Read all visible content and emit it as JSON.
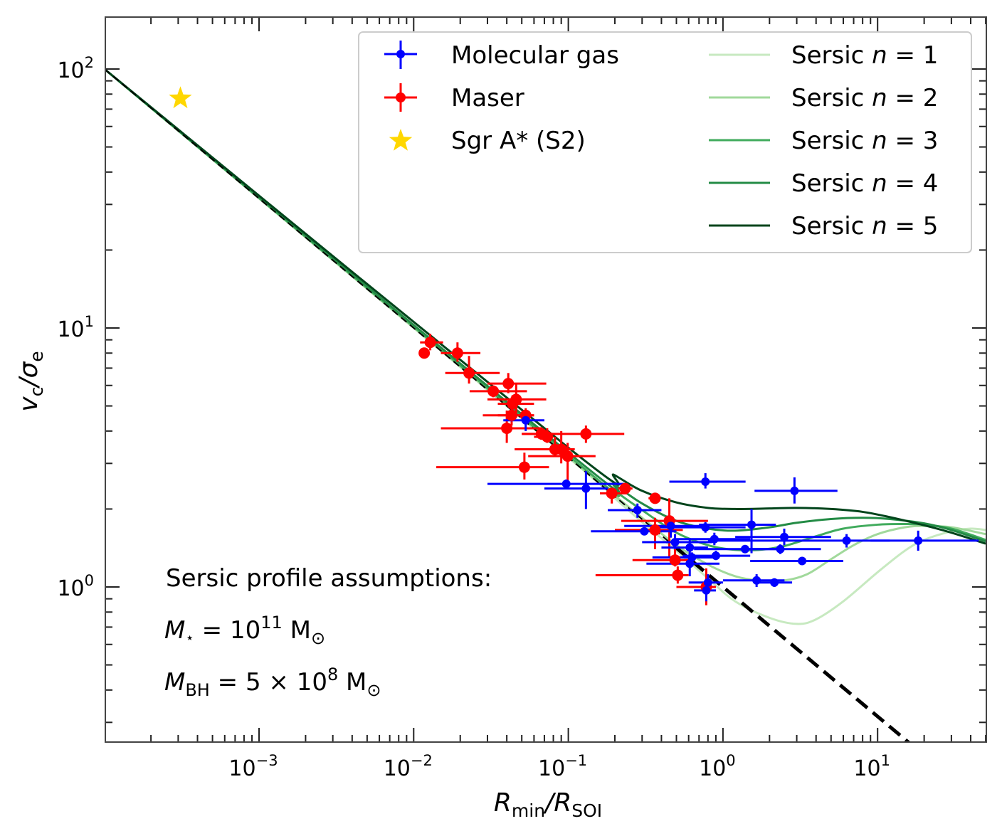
{
  "chart_data": {
    "type": "scatter",
    "title": "",
    "xlabel": "R_min/R_SOI",
    "xlabel_parts": {
      "main1": "R",
      "sub1": "min",
      "slash": "/",
      "main2": "R",
      "sub2": "SOI"
    },
    "ylabel": "v_c/σ_e",
    "ylabel_parts": {
      "main1": "v",
      "sub1": "c",
      "slash": "/",
      "main2": "σ",
      "sub2": "e"
    },
    "xscale": "log",
    "yscale": "log",
    "xlim": [
      0.0001,
      50
    ],
    "ylim": [
      0.25,
      160
    ],
    "grid": false,
    "x_ticks": [
      {
        "value": 0.001,
        "base": "10",
        "exp": "−3"
      },
      {
        "value": 0.01,
        "base": "10",
        "exp": "−2"
      },
      {
        "value": 0.1,
        "base": "10",
        "exp": "−1"
      },
      {
        "value": 1,
        "base": "10",
        "exp": "0"
      },
      {
        "value": 10,
        "base": "10",
        "exp": "1"
      }
    ],
    "y_ticks": [
      {
        "value": 1,
        "base": "10",
        "exp": "0"
      },
      {
        "value": 10,
        "base": "10",
        "exp": "1"
      },
      {
        "value": 100,
        "base": "10",
        "exp": "2"
      }
    ],
    "legend": {
      "placement": "top-right",
      "entries": [
        {
          "label": "Molecular gas",
          "kind": "errorbar",
          "color": "#0000ff"
        },
        {
          "label": "Maser",
          "kind": "errorbar",
          "color": "#ff0000"
        },
        {
          "label": "Sgr A* (S2)",
          "kind": "star",
          "color": "#ffd700"
        },
        {
          "label_prefix": "Sersic ",
          "label_var": "n",
          "label_suffix": " = 1",
          "kind": "line",
          "color": "#c7e9c0"
        },
        {
          "label_prefix": "Sersic ",
          "label_var": "n",
          "label_suffix": " = 2",
          "kind": "line",
          "color": "#a1d99b"
        },
        {
          "label_prefix": "Sersic ",
          "label_var": "n",
          "label_suffix": " = 3",
          "kind": "line",
          "color": "#41ab5d"
        },
        {
          "label_prefix": "Sersic ",
          "label_var": "n",
          "label_suffix": " = 4",
          "kind": "line",
          "color": "#238b45"
        },
        {
          "label_prefix": "Sersic ",
          "label_var": "n",
          "label_suffix": " = 5",
          "kind": "line",
          "color": "#00441b"
        }
      ]
    },
    "annotations": {
      "heading": "Sersic profile assumptions:",
      "mstar": {
        "sym": "M",
        "sub": "⋆",
        "eq": " = 10",
        "exp": "11",
        "unit": " M",
        "unit_sub": "⊙"
      },
      "mbh": {
        "sym": "M",
        "sub": "BH",
        "eq": " = 5 × 10",
        "exp": "8",
        "unit": " M",
        "unit_sub": "⊙"
      }
    },
    "reference_line": {
      "name": "Keplerian (black hole only)",
      "style": "dashed",
      "color": "#000000",
      "slope": -0.5,
      "x0": 0.0001,
      "y0": 100
    },
    "series": [
      {
        "name": "Maser",
        "type": "errorbar",
        "color": "#ff0000",
        "points": [
          {
            "x": 0.0117,
            "y": 8.0,
            "xlo": 0.0117,
            "xhi": 0.0117,
            "ylo": 8.0,
            "yhi": 8.0
          },
          {
            "x": 0.0128,
            "y": 8.8,
            "xlo": 0.011,
            "xhi": 0.0155,
            "ylo": 8.2,
            "yhi": 9.5
          },
          {
            "x": 0.0192,
            "y": 8.0,
            "xlo": 0.015,
            "xhi": 0.027,
            "ylo": 7.4,
            "yhi": 8.8
          },
          {
            "x": 0.0228,
            "y": 6.7,
            "xlo": 0.016,
            "xhi": 0.036,
            "ylo": 6.1,
            "yhi": 7.8
          },
          {
            "x": 0.0327,
            "y": 5.7,
            "xlo": 0.023,
            "xhi": 0.054,
            "ylo": 5.4,
            "yhi": 6.0
          },
          {
            "x": 0.0409,
            "y": 6.1,
            "xlo": 0.03,
            "xhi": 0.072,
            "ylo": 5.6,
            "yhi": 6.7
          },
          {
            "x": 0.0436,
            "y": 5.1,
            "xlo": 0.035,
            "xhi": 0.06,
            "ylo": 4.6,
            "yhi": 5.5
          },
          {
            "x": 0.046,
            "y": 5.3,
            "xlo": 0.03,
            "xhi": 0.072,
            "ylo": 4.7,
            "yhi": 6.1
          },
          {
            "x": 0.043,
            "y": 4.6,
            "xlo": 0.028,
            "xhi": 0.06,
            "ylo": 4.2,
            "yhi": 5.0
          },
          {
            "x": 0.053,
            "y": 4.6,
            "xlo": 0.035,
            "xhi": 0.06,
            "ylo": 4.3,
            "yhi": 4.9
          },
          {
            "x": 0.04,
            "y": 4.1,
            "xlo": 0.015,
            "xhi": 0.068,
            "ylo": 3.6,
            "yhi": 4.8
          },
          {
            "x": 0.067,
            "y": 3.9,
            "xlo": 0.05,
            "xhi": 0.08,
            "ylo": 3.7,
            "yhi": 4.0
          },
          {
            "x": 0.073,
            "y": 3.8,
            "xlo": 0.06,
            "xhi": 0.08,
            "ylo": 3.6,
            "yhi": 4.1
          },
          {
            "x": 0.082,
            "y": 3.4,
            "xlo": 0.045,
            "xhi": 0.11,
            "ylo": 3.2,
            "yhi": 3.8
          },
          {
            "x": 0.09,
            "y": 3.4,
            "xlo": 0.045,
            "xhi": 0.11,
            "ylo": 3.0,
            "yhi": 4.0
          },
          {
            "x": 0.099,
            "y": 3.2,
            "xlo": 0.055,
            "xhi": 0.15,
            "ylo": 2.5,
            "yhi": 3.6
          },
          {
            "x": 0.052,
            "y": 2.9,
            "xlo": 0.014,
            "xhi": 0.075,
            "ylo": 2.6,
            "yhi": 3.3
          },
          {
            "x": 0.13,
            "y": 3.9,
            "xlo": 0.05,
            "xhi": 0.23,
            "ylo": 3.6,
            "yhi": 4.2
          },
          {
            "x": 0.191,
            "y": 2.3,
            "xlo": 0.16,
            "xhi": 0.24,
            "ylo": 2.1,
            "yhi": 2.4
          },
          {
            "x": 0.233,
            "y": 2.4,
            "xlo": 0.21,
            "xhi": 0.26,
            "ylo": 2.3,
            "yhi": 2.5
          },
          {
            "x": 0.364,
            "y": 2.2,
            "xlo": 0.33,
            "xhi": 0.39,
            "ylo": 2.1,
            "yhi": 2.3
          },
          {
            "x": 0.45,
            "y": 1.8,
            "xlo": 0.22,
            "xhi": 0.8,
            "ylo": 1.3,
            "yhi": 2.2
          },
          {
            "x": 0.364,
            "y": 1.66,
            "xlo": 0.2,
            "xhi": 0.55,
            "ylo": 1.4,
            "yhi": 1.85
          },
          {
            "x": 0.49,
            "y": 1.27,
            "xlo": 0.26,
            "xhi": 0.65,
            "ylo": 1.2,
            "yhi": 1.4
          },
          {
            "x": 0.51,
            "y": 1.11,
            "xlo": 0.15,
            "xhi": 0.6,
            "ylo": 1.03,
            "yhi": 1.2
          },
          {
            "x": 0.78,
            "y": 1.0,
            "xlo": 0.5,
            "xhi": 0.9,
            "ylo": 0.85,
            "yhi": 1.18
          }
        ]
      },
      {
        "name": "Molecular gas",
        "type": "errorbar",
        "color": "#0000ff",
        "points": [
          {
            "x": 0.053,
            "y": 4.4,
            "xlo": 0.038,
            "xhi": 0.07,
            "ylo": 4.0,
            "yhi": 4.8
          },
          {
            "x": 0.097,
            "y": 2.5,
            "xlo": 0.03,
            "xhi": 0.23,
            "ylo": 2.4,
            "yhi": 2.6
          },
          {
            "x": 0.13,
            "y": 2.4,
            "xlo": 0.07,
            "xhi": 0.18,
            "ylo": 2.0,
            "yhi": 2.8
          },
          {
            "x": 0.28,
            "y": 1.98,
            "xlo": 0.18,
            "xhi": 0.4,
            "ylo": 1.85,
            "yhi": 2.1
          },
          {
            "x": 0.31,
            "y": 1.64,
            "xlo": 0.14,
            "xhi": 0.5,
            "ylo": 1.6,
            "yhi": 1.68
          },
          {
            "x": 0.46,
            "y": 1.72,
            "xlo": 0.23,
            "xhi": 0.8,
            "ylo": 1.55,
            "yhi": 1.85
          },
          {
            "x": 0.49,
            "y": 1.49,
            "xlo": 0.3,
            "xhi": 0.85,
            "ylo": 1.4,
            "yhi": 1.6
          },
          {
            "x": 0.61,
            "y": 1.42,
            "xlo": 0.4,
            "xhi": 0.8,
            "ylo": 1.33,
            "yhi": 1.52
          },
          {
            "x": 0.63,
            "y": 1.3,
            "xlo": 0.35,
            "xhi": 0.9,
            "ylo": 1.23,
            "yhi": 1.36
          },
          {
            "x": 0.61,
            "y": 1.23,
            "xlo": 0.32,
            "xhi": 0.95,
            "ylo": 1.1,
            "yhi": 1.35
          },
          {
            "x": 0.77,
            "y": 2.55,
            "xlo": 0.45,
            "xhi": 1.4,
            "ylo": 2.4,
            "yhi": 2.75
          },
          {
            "x": 0.77,
            "y": 1.7,
            "xlo": 0.35,
            "xhi": 1.4,
            "ylo": 1.62,
            "yhi": 1.78
          },
          {
            "x": 0.88,
            "y": 1.53,
            "xlo": 0.5,
            "xhi": 1.5,
            "ylo": 1.45,
            "yhi": 1.62
          },
          {
            "x": 0.9,
            "y": 1.32,
            "xlo": 0.55,
            "xhi": 1.5,
            "ylo": 1.27,
            "yhi": 1.38
          },
          {
            "x": 0.8,
            "y": 1.04,
            "xlo": 0.6,
            "xhi": 1.0,
            "ylo": 0.96,
            "yhi": 1.12
          },
          {
            "x": 0.78,
            "y": 0.97,
            "xlo": 0.65,
            "xhi": 0.9,
            "ylo": 0.88,
            "yhi": 1.07
          },
          {
            "x": 1.39,
            "y": 1.4,
            "xlo": 0.65,
            "xhi": 2.5,
            "ylo": 1.35,
            "yhi": 1.45
          },
          {
            "x": 1.53,
            "y": 1.74,
            "xlo": 0.7,
            "xhi": 2.2,
            "ylo": 1.35,
            "yhi": 2.0
          },
          {
            "x": 1.65,
            "y": 1.06,
            "xlo": 1.0,
            "xhi": 2.5,
            "ylo": 1.0,
            "yhi": 1.12
          },
          {
            "x": 2.15,
            "y": 1.04,
            "xlo": 1.7,
            "xhi": 2.8,
            "ylo": 1.0,
            "yhi": 1.08
          },
          {
            "x": 2.35,
            "y": 1.4,
            "xlo": 1.3,
            "xhi": 4.3,
            "ylo": 1.34,
            "yhi": 1.46
          },
          {
            "x": 2.49,
            "y": 1.56,
            "xlo": 1.2,
            "xhi": 5.0,
            "ylo": 1.45,
            "yhi": 1.68
          },
          {
            "x": 3.25,
            "y": 1.26,
            "xlo": 1.5,
            "xhi": 6.0,
            "ylo": 1.22,
            "yhi": 1.3
          },
          {
            "x": 2.9,
            "y": 2.35,
            "xlo": 1.6,
            "xhi": 5.5,
            "ylo": 2.1,
            "yhi": 2.65
          },
          {
            "x": 6.3,
            "y": 1.51,
            "xlo": 0.8,
            "xhi": 12.0,
            "ylo": 1.42,
            "yhi": 1.6
          },
          {
            "x": 18.3,
            "y": 1.51,
            "xlo": 9.0,
            "xhi": 45.0,
            "ylo": 1.38,
            "yhi": 1.65
          }
        ]
      },
      {
        "name": "Sgr A* (S2)",
        "type": "star",
        "color": "#ffd700",
        "points": [
          {
            "x": 0.00031,
            "y": 77
          }
        ]
      },
      {
        "name": "Sersic n=1",
        "type": "line",
        "color": "#c7e9c0",
        "x": [
          0.0001,
          0.1,
          0.2,
          0.3,
          0.5,
          0.8,
          1.2,
          2.0,
          3.0,
          4.0,
          6.0,
          10.0,
          15.0,
          20.0,
          30.0,
          40.0,
          50.0
        ],
        "y": [
          100,
          3.16,
          2.2,
          1.78,
          1.38,
          1.08,
          0.88,
          0.76,
          0.72,
          0.75,
          0.88,
          1.14,
          1.38,
          1.52,
          1.64,
          1.68,
          1.66
        ]
      },
      {
        "name": "Sersic n=2",
        "type": "line",
        "color": "#a1d99b",
        "x": [
          0.0001,
          0.1,
          0.2,
          0.3,
          0.5,
          0.8,
          1.2,
          1.7,
          2.5,
          3.5,
          5.0,
          7.0,
          10.0,
          15.0,
          20.0,
          30.0,
          50.0
        ],
        "y": [
          100,
          3.18,
          2.25,
          1.85,
          1.45,
          1.22,
          1.1,
          1.06,
          1.06,
          1.12,
          1.28,
          1.45,
          1.6,
          1.7,
          1.72,
          1.7,
          1.6
        ]
      },
      {
        "name": "Sersic n=3",
        "type": "line",
        "color": "#41ab5d",
        "x": [
          0.0001,
          0.1,
          0.2,
          0.3,
          0.5,
          0.8,
          1.2,
          1.7,
          2.5,
          4.0,
          6.0,
          10.0,
          15.0,
          20.0,
          30.0,
          50.0
        ],
        "y": [
          100,
          3.22,
          2.35,
          1.98,
          1.62,
          1.45,
          1.39,
          1.39,
          1.44,
          1.57,
          1.68,
          1.74,
          1.75,
          1.74,
          1.68,
          1.52
        ]
      },
      {
        "name": "Sersic n=4",
        "type": "line",
        "color": "#238b45",
        "x": [
          0.0001,
          0.1,
          0.2,
          0.3,
          0.5,
          0.8,
          1.2,
          2.0,
          3.0,
          5.0,
          8.0,
          12.0,
          20.0,
          30.0,
          50.0
        ],
        "y": [
          100,
          3.3,
          2.48,
          2.1,
          1.8,
          1.68,
          1.65,
          1.7,
          1.77,
          1.83,
          1.85,
          1.83,
          1.76,
          1.66,
          1.5
        ]
      },
      {
        "name": "Sersic n=5",
        "type": "line",
        "color": "#00441b",
        "x": [
          0.0001,
          0.1,
          0.2,
          0.3,
          0.5,
          0.8,
          1.2,
          2.0,
          3.0,
          5.0,
          8.0,
          12.0,
          20.0,
          30.0,
          50.0
        ],
        "y": [
          100,
          3.45,
          2.7,
          2.35,
          2.12,
          2.02,
          2.0,
          2.01,
          2.02,
          2.0,
          1.95,
          1.86,
          1.73,
          1.62,
          1.47
        ]
      }
    ]
  }
}
